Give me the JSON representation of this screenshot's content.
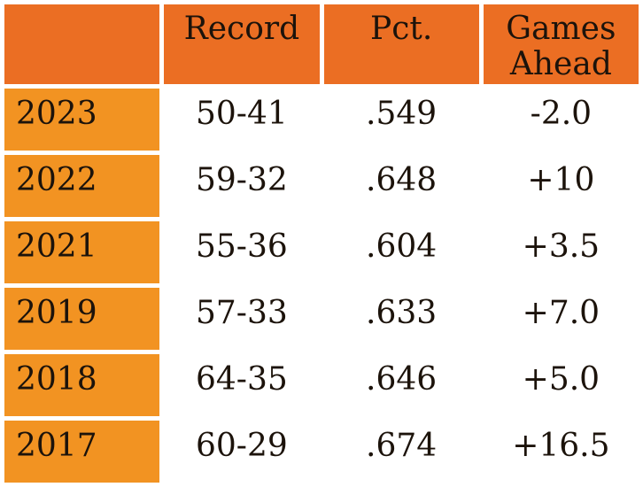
{
  "colors": {
    "header_bg": "#EB6E23",
    "year_column_bg": "#F29322",
    "data_cell_bg": "#FFFFFF",
    "text": "#1C130B",
    "page_bg": "#FFFFFF"
  },
  "table": {
    "columns": [
      "",
      "Record",
      "Pct.",
      "Games Ahead"
    ],
    "rows": [
      {
        "year": "2023",
        "record": "50-41",
        "pct": ".549",
        "games_ahead": "-2.0"
      },
      {
        "year": "2022",
        "record": "59-32",
        "pct": ".648",
        "games_ahead": "+10"
      },
      {
        "year": "2021",
        "record": "55-36",
        "pct": ".604",
        "games_ahead": "+3.5"
      },
      {
        "year": "2019",
        "record": "57-33",
        "pct": ".633",
        "games_ahead": "+7.0"
      },
      {
        "year": "2018",
        "record": "64-35",
        "pct": ".646",
        "games_ahead": "+5.0"
      },
      {
        "year": "2017",
        "record": "60-29",
        "pct": ".674",
        "games_ahead": "+16.5"
      }
    ]
  },
  "chart_data": {
    "type": "table",
    "columns": [
      "",
      "Record",
      "Pct.",
      "Games Ahead"
    ],
    "rows": [
      [
        "2023",
        "50-41",
        ".549",
        "-2.0"
      ],
      [
        "2022",
        "59-32",
        ".648",
        "+10"
      ],
      [
        "2021",
        "55-36",
        ".604",
        "+3.5"
      ],
      [
        "2019",
        "57-33",
        ".633",
        "+7.0"
      ],
      [
        "2018",
        "64-35",
        ".646",
        "+5.0"
      ],
      [
        "2017",
        "60-29",
        ".674",
        "+16.5"
      ]
    ],
    "layout_hints": {
      "header_fill": "#EB6E23",
      "row_label_fill": "#F29322",
      "cell_fill": "#FFFFFF",
      "grid": "white-gaps",
      "font": "serif"
    }
  }
}
